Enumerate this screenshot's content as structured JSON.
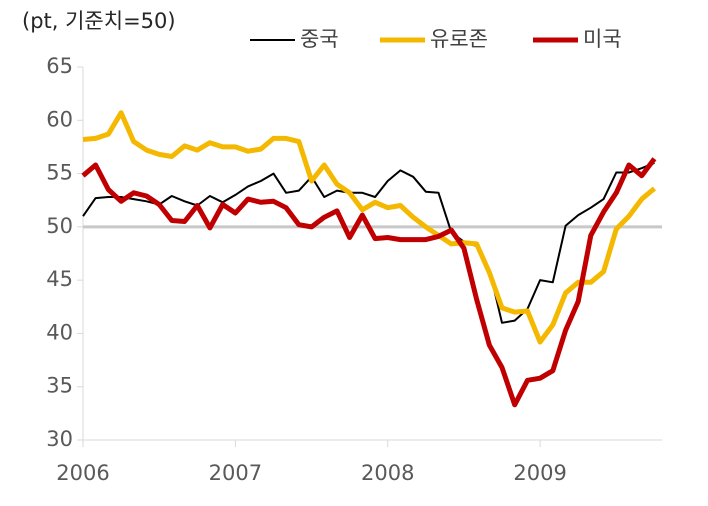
{
  "chart_data": {
    "type": "line",
    "title": "(pt, 기준치=50)",
    "x": [
      2006.0,
      2006.083,
      2006.167,
      2006.25,
      2006.333,
      2006.417,
      2006.5,
      2006.583,
      2006.667,
      2006.75,
      2006.833,
      2006.917,
      2007.0,
      2007.083,
      2007.167,
      2007.25,
      2007.333,
      2007.417,
      2007.5,
      2007.583,
      2007.667,
      2007.75,
      2007.833,
      2007.917,
      2008.0,
      2008.083,
      2008.167,
      2008.25,
      2008.333,
      2008.417,
      2008.5,
      2008.583,
      2008.667,
      2008.75,
      2008.833,
      2008.917,
      2009.0,
      2009.083,
      2009.167,
      2009.25,
      2009.333,
      2009.417,
      2009.5,
      2009.583,
      2009.667,
      2009.75
    ],
    "series": [
      {
        "name": "중국",
        "color": "#000000",
        "width": 2,
        "values": [
          51.0,
          52.7,
          52.8,
          52.8,
          52.6,
          52.4,
          52.1,
          52.9,
          52.4,
          52.0,
          52.9,
          52.3,
          53.0,
          53.8,
          54.3,
          55.0,
          53.2,
          53.4,
          54.7,
          52.8,
          53.4,
          53.2,
          53.2,
          52.8,
          54.3,
          55.3,
          54.7,
          53.3,
          53.2,
          49.5,
          48.6,
          48.2,
          46.0,
          41.0,
          41.2,
          42.3,
          45.0,
          44.8,
          50.1,
          51.1,
          51.8,
          52.6,
          55.1,
          55.1,
          55.5,
          56.0
        ]
      },
      {
        "name": "유로존",
        "color": "#f5b800",
        "width": 5,
        "values": [
          58.2,
          58.3,
          58.7,
          60.7,
          58.0,
          57.2,
          56.8,
          56.6,
          57.6,
          57.2,
          57.9,
          57.5,
          57.5,
          57.1,
          57.3,
          58.3,
          58.3,
          58.0,
          54.3,
          55.8,
          54.0,
          53.2,
          51.6,
          52.3,
          51.8,
          52.0,
          50.9,
          50.0,
          49.2,
          48.4,
          48.5,
          48.4,
          45.7,
          42.4,
          42.0,
          42.1,
          39.2,
          40.8,
          43.8,
          44.8,
          44.8,
          45.8,
          49.8,
          51.0,
          52.6,
          53.6
        ]
      },
      {
        "name": "미국",
        "color": "#c00000",
        "width": 5,
        "values": [
          54.8,
          55.8,
          53.5,
          52.4,
          53.2,
          52.9,
          52.1,
          50.6,
          50.5,
          52.0,
          49.9,
          52.1,
          51.3,
          52.6,
          52.3,
          52.4,
          51.8,
          50.2,
          50.0,
          50.9,
          51.5,
          49.0,
          51.1,
          48.9,
          49.0,
          48.8,
          48.8,
          48.8,
          49.1,
          49.7,
          48.0,
          43.2,
          38.9,
          36.8,
          33.3,
          35.6,
          35.8,
          36.5,
          40.3,
          43.0,
          49.2,
          51.4,
          53.2,
          55.8,
          54.8,
          56.4
        ]
      }
    ],
    "reference_line": 50,
    "reference_color": "#c8c8c8",
    "xlim": [
      2006,
      2009.8
    ],
    "xticks": [
      2006,
      2007,
      2008,
      2009
    ],
    "ylim": [
      30,
      65
    ],
    "yticks": [
      30,
      35,
      40,
      45,
      50,
      55,
      60,
      65
    ]
  }
}
